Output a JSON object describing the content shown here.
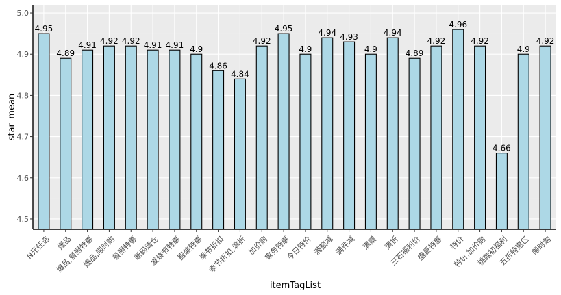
{
  "chart_data": {
    "type": "bar",
    "xlabel": "itemTagList",
    "ylabel": "star_mean",
    "ylim": [
      4.475,
      5.02
    ],
    "yticks": [
      4.5,
      4.6,
      4.7,
      4.8,
      4.9,
      5.0
    ],
    "ytick_labels": [
      "4.5",
      "4.6",
      "4.7",
      "4.8",
      "4.9",
      "5.0"
    ],
    "grid": true,
    "categories": [
      "N元任选",
      "爆品",
      "爆品,餐厨特惠",
      "爆品,限时购",
      "餐厨特惠",
      "断码清仓",
      "发烧节特惠",
      "服装特惠",
      "季节折扣",
      "季节折扣,满折",
      "加价购",
      "家务特惠",
      "今日特价",
      "满额减",
      "满件减",
      "满赠",
      "满折",
      "三石福利价",
      "盛夏特惠",
      "特价",
      "特价,加价购",
      "挑款初福利",
      "五折特惠区",
      "限时购"
    ],
    "values": [
      4.95,
      4.89,
      4.91,
      4.92,
      4.92,
      4.91,
      4.91,
      4.9,
      4.86,
      4.84,
      4.92,
      4.95,
      4.9,
      4.94,
      4.93,
      4.9,
      4.94,
      4.89,
      4.92,
      4.96,
      4.92,
      4.66,
      4.9,
      4.92
    ],
    "value_labels": [
      "4.95",
      "4.89",
      "4.91",
      "4.92",
      "4.92",
      "4.91",
      "4.91",
      "4.9",
      "4.86",
      "4.84",
      "4.92",
      "4.95",
      "4.9",
      "4.94",
      "4.93",
      "4.9",
      "4.94",
      "4.89",
      "4.92",
      "4.96",
      "4.92",
      "4.66",
      "4.9",
      "4.92"
    ],
    "colors": {
      "bar_fill": "#add8e6",
      "bar_stroke": "#000000",
      "panel_background": "#ebebeb",
      "grid_major": "#ffffff",
      "grid_minor": "#f5f5f5",
      "axis_line": "#000000"
    }
  }
}
